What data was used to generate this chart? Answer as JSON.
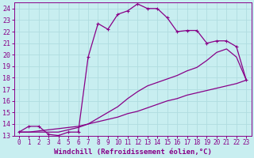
{
  "xlabel": "Windchill (Refroidissement éolien,°C)",
  "background_color": "#c8eef0",
  "grid_color": "#b0dde0",
  "line_color": "#880088",
  "xlim": [
    -0.5,
    23.5
  ],
  "ylim": [
    13,
    24.5
  ],
  "xticks": [
    0,
    1,
    2,
    3,
    4,
    5,
    6,
    7,
    8,
    9,
    10,
    11,
    12,
    13,
    14,
    15,
    16,
    17,
    18,
    19,
    20,
    21,
    22,
    23
  ],
  "yticks": [
    13,
    14,
    15,
    16,
    17,
    18,
    19,
    20,
    21,
    22,
    23,
    24
  ],
  "curve1_x": [
    0,
    1,
    2,
    3,
    4,
    5,
    6,
    7,
    8,
    9,
    10,
    11,
    12,
    13,
    14,
    15,
    16,
    17,
    18,
    19,
    20,
    21,
    22,
    23
  ],
  "curve1_y": [
    13.3,
    13.8,
    13.8,
    13.1,
    13.0,
    13.3,
    13.3,
    19.8,
    22.7,
    22.2,
    23.5,
    23.8,
    24.4,
    24.0,
    24.0,
    23.2,
    22.0,
    22.1,
    22.1,
    21.0,
    21.2,
    21.2,
    20.7,
    17.8
  ],
  "curve2_x": [
    0,
    1,
    2,
    3,
    4,
    5,
    6,
    7,
    8,
    9,
    10,
    11,
    12,
    13,
    14,
    15,
    16,
    17,
    18,
    19,
    20,
    21,
    22,
    23
  ],
  "curve2_y": [
    13.3,
    13.3,
    13.3,
    13.3,
    13.3,
    13.5,
    13.7,
    14.0,
    14.5,
    15.0,
    15.5,
    16.2,
    16.8,
    17.3,
    17.6,
    17.9,
    18.2,
    18.6,
    18.9,
    19.5,
    20.2,
    20.5,
    19.8,
    17.8
  ],
  "curve3_x": [
    0,
    1,
    2,
    3,
    4,
    5,
    6,
    7,
    8,
    9,
    10,
    11,
    12,
    13,
    14,
    15,
    16,
    17,
    18,
    19,
    20,
    21,
    22,
    23
  ],
  "curve3_y": [
    13.3,
    13.3,
    13.4,
    13.5,
    13.6,
    13.7,
    13.8,
    14.0,
    14.2,
    14.4,
    14.6,
    14.9,
    15.1,
    15.4,
    15.7,
    16.0,
    16.2,
    16.5,
    16.7,
    16.9,
    17.1,
    17.3,
    17.5,
    17.8
  ]
}
